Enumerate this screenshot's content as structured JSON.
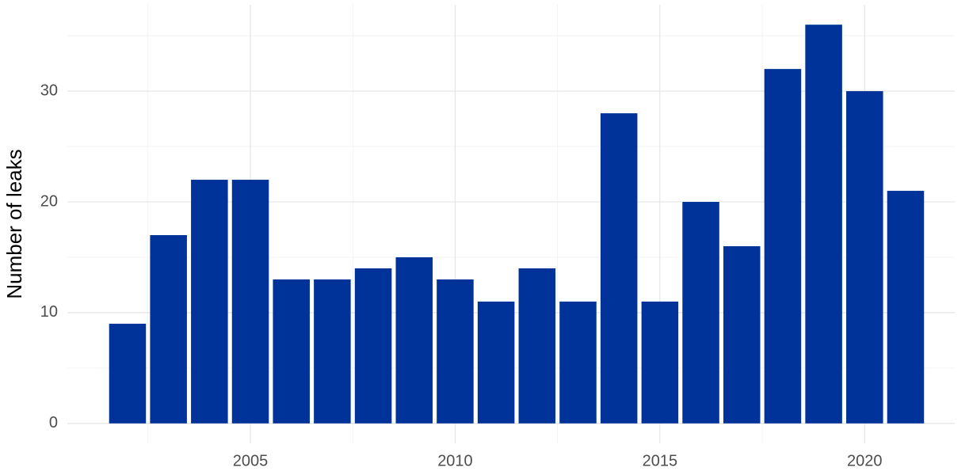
{
  "chart_data": {
    "type": "bar",
    "y_label": "Number of leaks",
    "x": [
      2002,
      2003,
      2004,
      2005,
      2006,
      2007,
      2008,
      2009,
      2010,
      2011,
      2012,
      2013,
      2014,
      2015,
      2016,
      2017,
      2018,
      2019,
      2020,
      2021
    ],
    "values": [
      9,
      17,
      22,
      22,
      13,
      13,
      14,
      15,
      13,
      11,
      14,
      11,
      28,
      11,
      20,
      16,
      32,
      36,
      30,
      21
    ],
    "color": "#003399",
    "xlim": [
      2000.53,
      2022.2
    ],
    "xticks": [
      2005,
      2010,
      2015,
      2020
    ],
    "ylim": [
      -1.8,
      37.8
    ],
    "yticks": [
      0,
      10,
      20,
      30
    ],
    "grid": true
  }
}
